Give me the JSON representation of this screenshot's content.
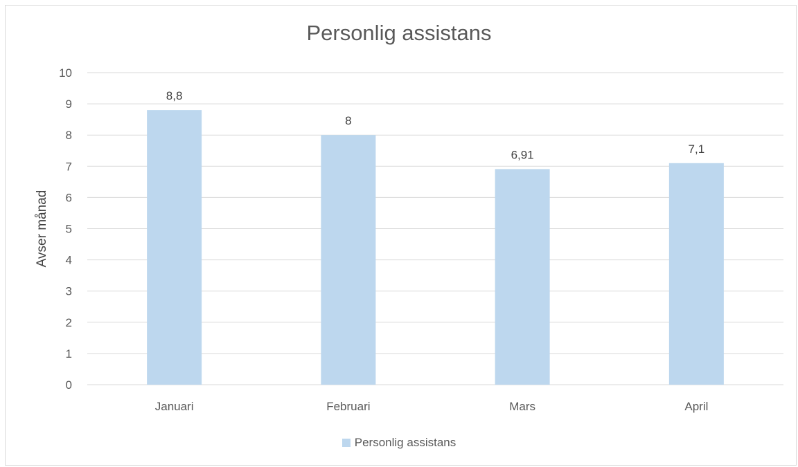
{
  "chart_data": {
    "type": "bar",
    "title": "Personlig assistans",
    "ylabel": "Avser månad",
    "xlabel": "",
    "categories": [
      "Januari",
      "Februari",
      "Mars",
      "April"
    ],
    "series": [
      {
        "name": "Personlig assistans",
        "values": [
          8.8,
          8,
          6.91,
          7.1
        ],
        "labels": [
          "8,8",
          "8",
          "6,91",
          "7,1"
        ]
      }
    ],
    "ylim": [
      0,
      10
    ],
    "yticks": [
      "0",
      "1",
      "2",
      "3",
      "4",
      "5",
      "6",
      "7",
      "8",
      "9",
      "10"
    ],
    "grid": true,
    "legend_position": "bottom",
    "colors": {
      "bar": "#bdd7ee",
      "grid": "#d9d9d9",
      "text": "#595959"
    }
  }
}
